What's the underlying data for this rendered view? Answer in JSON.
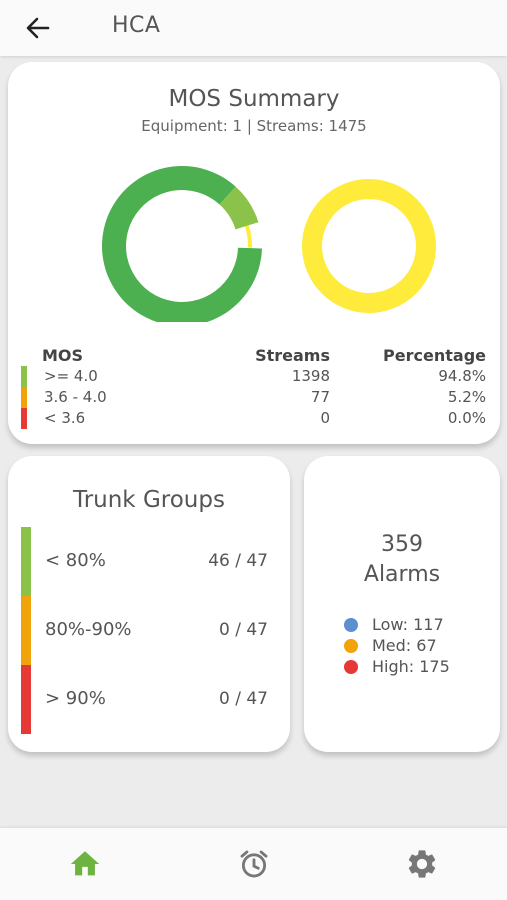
{
  "app_bar": {
    "title": "HCA",
    "back_icon": "arrow-left-icon"
  },
  "colors": {
    "green_dark": "#4caf50",
    "green_light": "#8bc34a",
    "yellow": "#ffeb3b",
    "orange": "#f0a30a",
    "red": "#e53935",
    "blue": "#5b8fcf",
    "nav_active": "#6db33f",
    "nav_inactive": "#777777"
  },
  "mos_summary": {
    "title": "MOS Summary",
    "subtitle": "Equipment: 1 | Streams: 1475",
    "rings": [
      {
        "segments": [
          {
            "fraction": 0.862,
            "color": "#4caf50"
          },
          {
            "fraction": 0.085,
            "color": "#8bc34a"
          },
          {
            "fraction": 0.052,
            "color": "#ffeb3b"
          }
        ]
      },
      {
        "segments": [
          {
            "fraction": 1.0,
            "color": "#ffeb3b"
          }
        ]
      }
    ],
    "table": {
      "headers": {
        "mos": "MOS",
        "streams": "Streams",
        "percentage": "Percentage"
      },
      "rows": [
        {
          "range": ">= 4.0",
          "streams": "1398",
          "percentage": "94.8%",
          "color": "#8bc34a"
        },
        {
          "range": "3.6 - 4.0",
          "streams": "77",
          "percentage": "5.2%",
          "color": "#f0a30a"
        },
        {
          "range": "< 3.6",
          "streams": "0",
          "percentage": "0.0%",
          "color": "#e53935"
        }
      ]
    }
  },
  "trunk_groups": {
    "title": "Trunk Groups",
    "rows": [
      {
        "label": "< 80%",
        "value": "46 / 47",
        "color": "#8bc34a"
      },
      {
        "label": "80%-90%",
        "value": "0 / 47",
        "color": "#f0a30a"
      },
      {
        "label": "> 90%",
        "value": "0 / 47",
        "color": "#e53935"
      }
    ]
  },
  "alarms": {
    "count": "359",
    "label": "Alarms",
    "items": [
      {
        "text": "Low: 117",
        "color": "#5b8fcf"
      },
      {
        "text": "Med: 67",
        "color": "#f0a30a"
      },
      {
        "text": "High: 175",
        "color": "#e53935"
      }
    ]
  },
  "bottom_nav": {
    "items": [
      {
        "icon": "home-icon",
        "active": true
      },
      {
        "icon": "alarm-clock-icon",
        "active": false
      },
      {
        "icon": "gear-icon",
        "active": false
      }
    ]
  }
}
